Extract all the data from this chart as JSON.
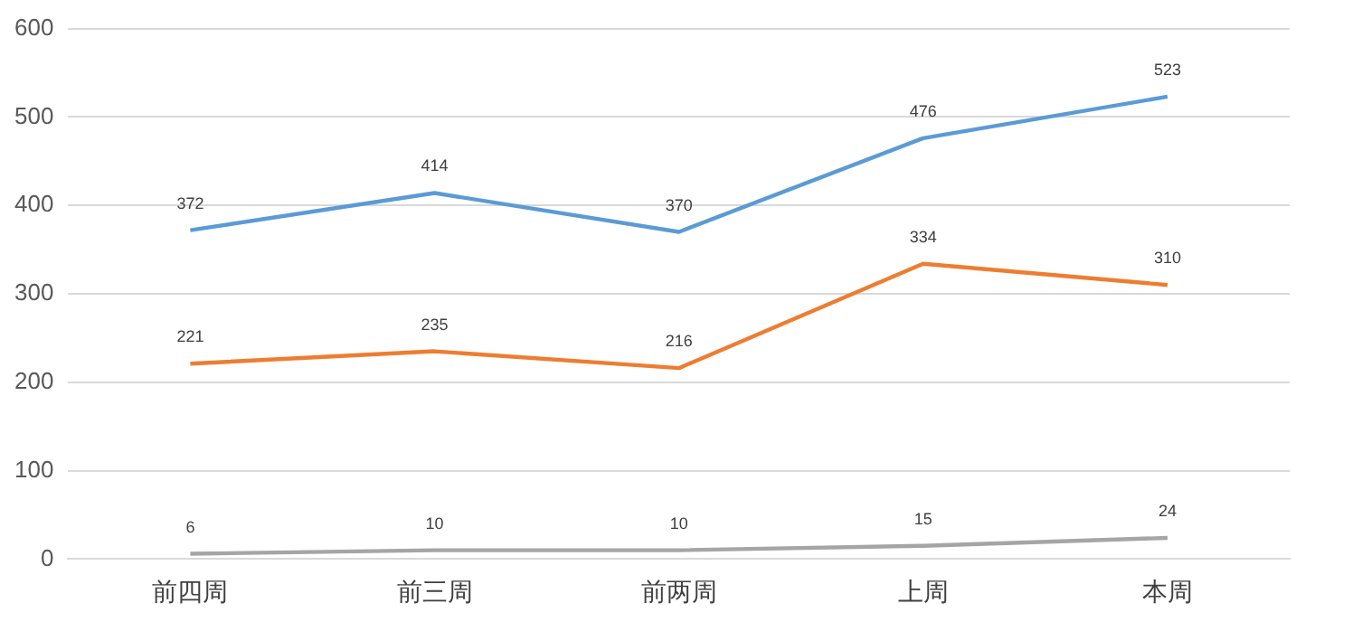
{
  "chart_data": {
    "type": "line",
    "categories": [
      "前四周",
      "前三周",
      "前两周",
      "上周",
      "本周"
    ],
    "series": [
      {
        "color": "#5b9bd5",
        "values": [
          372,
          414,
          370,
          476,
          523
        ]
      },
      {
        "color": "#ed7d31",
        "values": [
          221,
          235,
          216,
          334,
          310
        ]
      },
      {
        "color": "#a5a5a5",
        "values": [
          6,
          10,
          10,
          15,
          24
        ]
      }
    ],
    "ylim": [
      0,
      600
    ],
    "yticks": [
      0,
      100,
      200,
      300,
      400,
      500,
      600
    ],
    "grid": "y",
    "data_labels": true,
    "marker": "none",
    "line_style": "solid",
    "legend": false
  }
}
